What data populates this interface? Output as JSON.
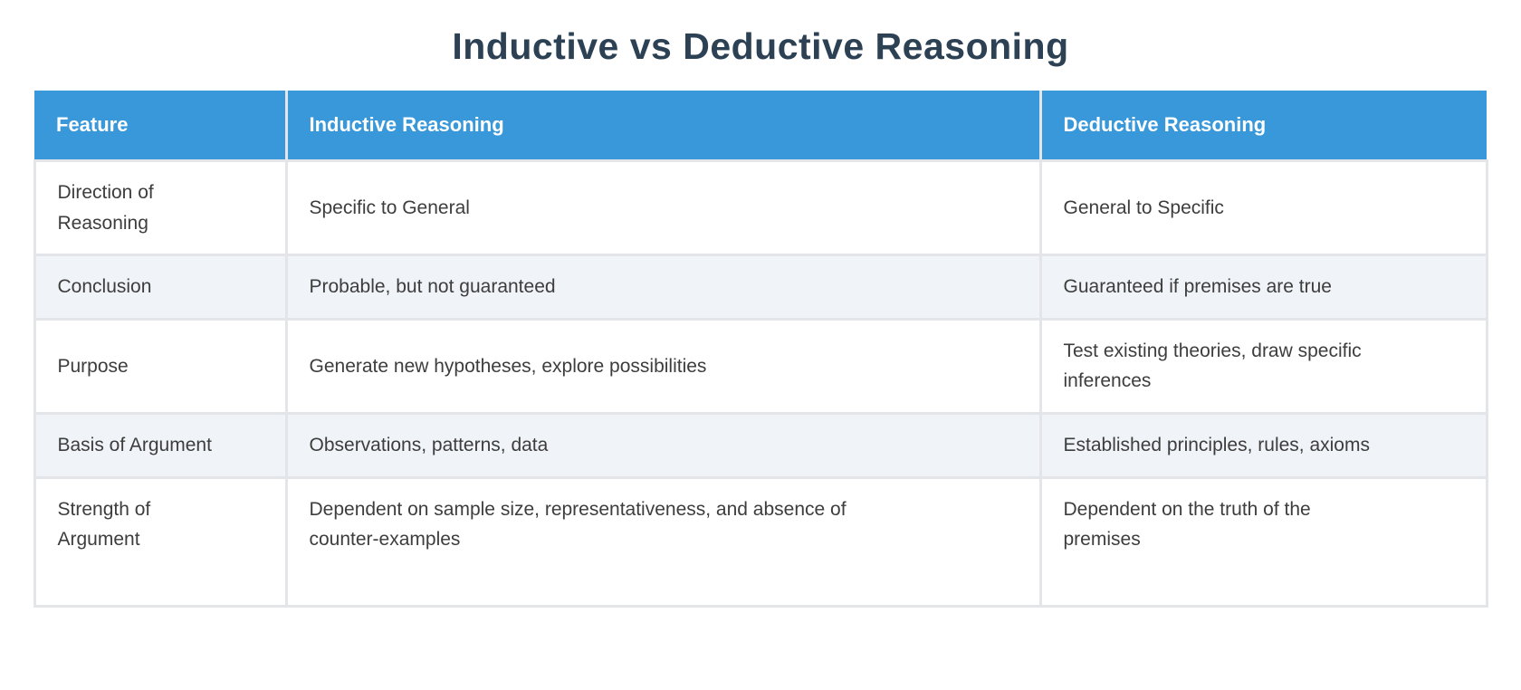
{
  "title": "Inductive vs Deductive Reasoning",
  "table": {
    "columns": [
      "Feature",
      "Inductive Reasoning",
      "Deductive Reasoning"
    ],
    "rows": [
      [
        "Direction of Reasoning",
        "Specific to General",
        "General to Specific"
      ],
      [
        "Conclusion",
        "Probable, but not guaranteed",
        "Guaranteed if premises are true"
      ],
      [
        "Purpose",
        "Generate new hypotheses, explore possibilities",
        "Test existing theories, draw specific inferences"
      ],
      [
        "Basis of Argument",
        "Observations, patterns, data",
        "Established principles, rules, axioms"
      ],
      [
        "Strength of Argument",
        "Dependent on sample size, representativeness, and absence of counter-examples",
        "Dependent on the truth of the premises"
      ]
    ]
  },
  "colors": {
    "header_background": "#3898d9",
    "header_text": "#ffffff",
    "stripe_row_background": "#f0f3f8",
    "row_background": "#ffffff",
    "cell_border": "#e3e5e8",
    "title_text": "#2d4154",
    "body_text": "#3d3d3d"
  }
}
